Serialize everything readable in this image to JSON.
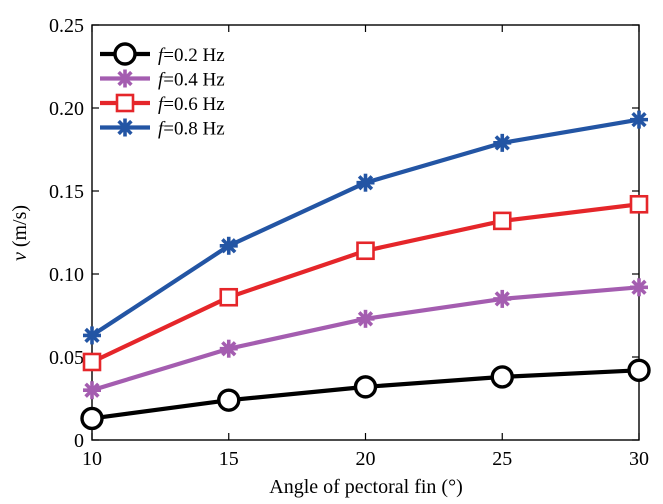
{
  "chart_data": {
    "type": "line",
    "title": "",
    "xlabel": "Angle of pectoral fin (°)",
    "ylabel_symbol": "v",
    "ylabel_unit": "(m/s)",
    "x": [
      10,
      15,
      20,
      25,
      30
    ],
    "xlim": [
      10,
      30
    ],
    "ylim": [
      0,
      0.25
    ],
    "x_ticks": [
      10,
      15,
      20,
      25,
      30
    ],
    "x_tick_labels": [
      "10",
      "15",
      "20",
      "25",
      "30"
    ],
    "y_ticks": [
      0,
      0.05,
      0.1,
      0.15,
      0.2,
      0.25
    ],
    "y_tick_labels": [
      "0",
      "0.05",
      "0.10",
      "0.15",
      "0.20",
      "0.25"
    ],
    "grid": false,
    "legend_position": "top-left",
    "series": [
      {
        "name": "f=0.2 Hz",
        "symbol": "f",
        "label_rest": "=0.2 Hz",
        "marker": "circle",
        "color": "#000000",
        "values": [
          0.013,
          0.024,
          0.032,
          0.038,
          0.042
        ]
      },
      {
        "name": "f=0.4 Hz",
        "symbol": "f",
        "label_rest": "=0.4 Hz",
        "marker": "asterisk",
        "color": "#A45DB0",
        "values": [
          0.03,
          0.055,
          0.073,
          0.085,
          0.092
        ]
      },
      {
        "name": "f=0.6 Hz",
        "symbol": "f",
        "label_rest": "=0.6 Hz",
        "marker": "square",
        "color": "#E5262A",
        "values": [
          0.047,
          0.086,
          0.114,
          0.132,
          0.142
        ]
      },
      {
        "name": "f=0.8 Hz",
        "symbol": "f",
        "label_rest": "=0.8 Hz",
        "marker": "asterisk",
        "color": "#2355A4",
        "values": [
          0.063,
          0.117,
          0.155,
          0.179,
          0.193
        ]
      }
    ]
  }
}
